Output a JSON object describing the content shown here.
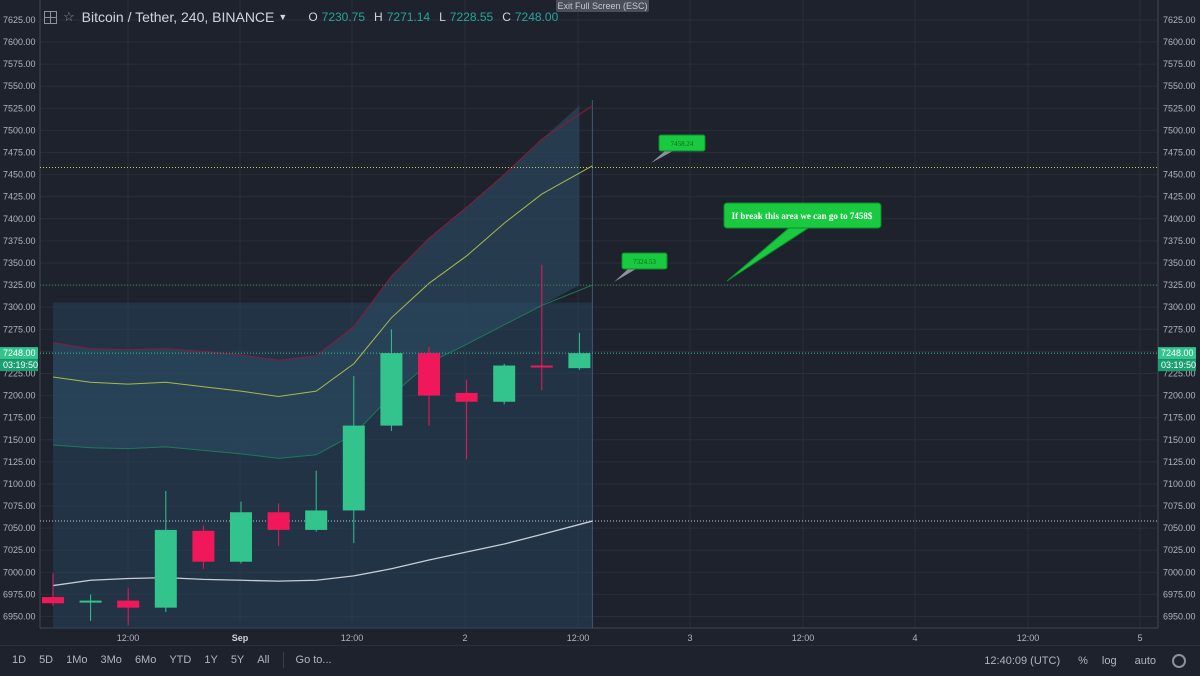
{
  "header": {
    "title": "Bitcoin / Tether, 240, BINANCE",
    "o_label": "O",
    "o_value": "7230.75",
    "h_label": "H",
    "h_value": "7271.14",
    "l_label": "L",
    "l_value": "7228.55",
    "c_label": "C",
    "c_value": "7248.00"
  },
  "exit_fullscreen": "Exit Full Screen (ESC)",
  "colors": {
    "up": "#33c48d",
    "down": "#f0185a",
    "bg": "#1e222d",
    "grid": "#2a2e39",
    "green_label": "#19c93f"
  },
  "price_tag": "7248.00",
  "countdown": "03:19:50",
  "annotations": {
    "callout_top": "7458.24",
    "callout_mid": "7324.53",
    "note": "If break this area we can go to 7458$"
  },
  "bottom_bar": {
    "ranges": [
      "1D",
      "5D",
      "1Mo",
      "3Mo",
      "6Mo",
      "YTD",
      "1Y",
      "5Y",
      "All"
    ],
    "goto": "Go to...",
    "time": "12:40:09 (UTC)",
    "percent": "%",
    "log": "log",
    "auto": "auto"
  },
  "chart_data": {
    "type": "candlestick",
    "y_ticks": [
      6950,
      6975,
      7000,
      7025,
      7050,
      7075,
      7100,
      7125,
      7150,
      7175,
      7200,
      7225,
      7250,
      7275,
      7300,
      7325,
      7350,
      7375,
      7400,
      7425,
      7450,
      7475,
      7500,
      7525,
      7550,
      7575,
      7600,
      7625
    ],
    "ylim": [
      6937,
      7634
    ],
    "x_ticks": [
      "12:00",
      "Sep",
      "12:00",
      "2",
      "12:00",
      "3",
      "12:00",
      "4",
      "12:00",
      "5"
    ],
    "candles": [
      {
        "o": 6972,
        "h": 6999,
        "l": 6962,
        "c": 6965
      },
      {
        "o": 6967,
        "h": 6975,
        "l": 6945,
        "c": 6968
      },
      {
        "o": 6968,
        "h": 6982,
        "l": 6940,
        "c": 6960
      },
      {
        "o": 6960,
        "h": 7092,
        "l": 6955,
        "c": 7048
      },
      {
        "o": 7047,
        "h": 7053,
        "l": 7004,
        "c": 7012
      },
      {
        "o": 7012,
        "h": 7080,
        "l": 7010,
        "c": 7068
      },
      {
        "o": 7068,
        "h": 7078,
        "l": 7030,
        "c": 7048
      },
      {
        "o": 7048,
        "h": 7115,
        "l": 7046,
        "c": 7070
      },
      {
        "o": 7070,
        "h": 7222,
        "l": 7033,
        "c": 7166
      },
      {
        "o": 7166,
        "h": 7275,
        "l": 7160,
        "c": 7248
      },
      {
        "o": 7248,
        "h": 7255,
        "l": 7166,
        "c": 7200
      },
      {
        "o": 7203,
        "h": 7218,
        "l": 7128,
        "c": 7193
      },
      {
        "o": 7193,
        "h": 7236,
        "l": 7190,
        "c": 7234
      },
      {
        "o": 7234,
        "h": 7348,
        "l": 7206,
        "c": 7232
      },
      {
        "o": 7231,
        "h": 7271,
        "l": 7229,
        "c": 7248
      }
    ],
    "bollinger": {
      "upper": [
        7260,
        7253,
        7252,
        7253,
        7250,
        7246,
        7240,
        7245,
        7278,
        7335,
        7378,
        7413,
        7450,
        7490,
        7528
      ],
      "middle": [
        7221,
        7215,
        7213,
        7215,
        7210,
        7205,
        7199,
        7205,
        7236,
        7288,
        7327,
        7358,
        7395,
        7428,
        7460
      ],
      "lower": [
        7144,
        7141,
        7140,
        7142,
        7138,
        7134,
        7129,
        7133,
        7156,
        7200,
        7237,
        7258,
        7280,
        7302,
        7325
      ]
    },
    "ma_line": [
      6985,
      6991,
      6993,
      6994,
      6992,
      6991,
      6990,
      6991,
      6996,
      7004,
      7014,
      7023,
      7032,
      7043,
      7058
    ],
    "hlines": [
      {
        "value": 7458,
        "color": "#c9cf5e"
      },
      {
        "value": 7325,
        "color": "#2f8f5a"
      },
      {
        "value": 7248,
        "color": "#33c48d"
      },
      {
        "value": 7058,
        "color": "#c8c9cd"
      }
    ]
  }
}
